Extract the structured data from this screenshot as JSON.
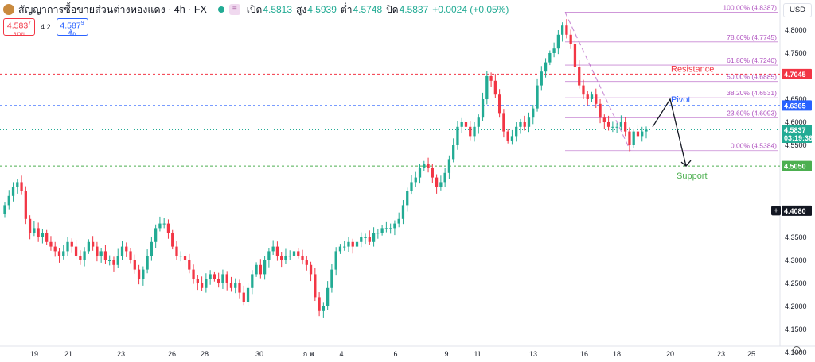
{
  "header": {
    "title": "สัญญาการซื้อขายส่วนต่างทองแดง · 4h · FX",
    "open_label": "เปิด",
    "open": "4.5813",
    "high_label": "สูง",
    "high": "4.5939",
    "low_label": "ต่ำ",
    "low": "4.5748",
    "close_label": "ปิด",
    "close": "4.5837",
    "change": "+0.0024 (+0.05%)",
    "symbol_icon": "copper-logo-icon",
    "live_icon": "live-dot-icon",
    "eye_icon": "indicator-visibility-icon",
    "eye_glyph": "≡"
  },
  "trade": {
    "sell_price": "4.583",
    "sell_sup": "7",
    "sell_label": "ขาย",
    "spread": "4.2",
    "buy_price": "4.587",
    "buy_sup": "9",
    "buy_label": "ซื้อ"
  },
  "currency": "USD",
  "colors": {
    "up": "#22ab94",
    "down": "#f23645",
    "fib": "#9c27b0",
    "pivot": "#2962ff",
    "support": "#4caf50",
    "resistance": "#f23645"
  },
  "chart_data": {
    "type": "candlestick",
    "interval": "4h",
    "x_ticks": [
      "19",
      "21",
      "23",
      "26",
      "28",
      "30",
      "ก.พ.",
      "4",
      "6",
      "9",
      "11",
      "13",
      "16",
      "18",
      "20",
      "23",
      "25"
    ],
    "y_ticks": [
      "4.8000",
      "4.7500",
      "4.6500",
      "4.6000",
      "4.5500",
      "4.3500",
      "4.3000",
      "4.2500",
      "4.2000",
      "4.1500",
      "4.1000"
    ],
    "ylim": [
      4.1,
      4.85
    ],
    "close_path": [
      4.42,
      4.44,
      4.46,
      4.47,
      4.45,
      4.39,
      4.36,
      4.37,
      4.35,
      4.36,
      4.34,
      4.33,
      4.32,
      4.31,
      4.32,
      4.34,
      4.33,
      4.31,
      4.3,
      4.32,
      4.34,
      4.33,
      4.31,
      4.32,
      4.3,
      4.3,
      4.29,
      4.31,
      4.33,
      4.32,
      4.3,
      4.28,
      4.26,
      4.28,
      4.31,
      4.34,
      4.37,
      4.38,
      4.38,
      4.36,
      4.33,
      4.31,
      4.31,
      4.3,
      4.28,
      4.26,
      4.25,
      4.24,
      4.26,
      4.27,
      4.26,
      4.25,
      4.27,
      4.25,
      4.24,
      4.25,
      4.23,
      4.21,
      4.24,
      4.27,
      4.29,
      4.27,
      4.3,
      4.32,
      4.33,
      4.31,
      4.3,
      4.31,
      4.31,
      4.32,
      4.31,
      4.3,
      4.29,
      4.27,
      4.22,
      4.19,
      4.2,
      4.24,
      4.28,
      4.32,
      4.33,
      4.33,
      4.34,
      4.33,
      4.34,
      4.35,
      4.35,
      4.34,
      4.36,
      4.36,
      4.37,
      4.37,
      4.37,
      4.38,
      4.39,
      4.42,
      4.45,
      4.47,
      4.48,
      4.5,
      4.51,
      4.5,
      4.48,
      4.46,
      4.47,
      4.49,
      4.52,
      4.55,
      4.59,
      4.6,
      4.59,
      4.57,
      4.59,
      4.61,
      4.65,
      4.7,
      4.69,
      4.66,
      4.62,
      4.58,
      4.56,
      4.57,
      4.59,
      4.6,
      4.59,
      4.61,
      4.63,
      4.68,
      4.71,
      4.73,
      4.75,
      4.76,
      4.79,
      4.81,
      4.79,
      4.77,
      4.72,
      4.68,
      4.66,
      4.65,
      4.66,
      4.64,
      4.61,
      4.6,
      4.59,
      4.59,
      4.59,
      4.6,
      4.58,
      4.55,
      4.58,
      4.57,
      4.58,
      4.5837
    ],
    "fibonacci": [
      {
        "label": "100.00% (4.8387)",
        "value": 4.8387
      },
      {
        "label": "78.60% (4.7745)",
        "value": 4.7745
      },
      {
        "label": "61.80% (4.7240)",
        "value": 4.724
      },
      {
        "label": "50.00% (4.6885)",
        "value": 4.6885
      },
      {
        "label": "38.20% (4.6531)",
        "value": 4.6531
      },
      {
        "label": "23.60% (4.6093)",
        "value": 4.6093
      },
      {
        "label": "0.00% (4.5384)",
        "value": 4.5384
      }
    ],
    "levels": {
      "resistance": {
        "label": "Resistance",
        "value": 4.7045,
        "badge": "4.7045"
      },
      "pivot": {
        "label": "Pivot",
        "value": 4.6365,
        "badge": "4.6365"
      },
      "support": {
        "label": "Support",
        "value": 4.505,
        "badge": "4.5050"
      },
      "last": {
        "value": 4.5837,
        "badge": "4.5837",
        "countdown": "03:19:36"
      },
      "crosshair": {
        "value": 4.408,
        "badge": "4.4080"
      }
    },
    "projection": [
      {
        "t": "18",
        "price": 4.59
      },
      {
        "t": "19",
        "price": 4.65
      },
      {
        "t": "20",
        "price": 4.505
      }
    ]
  }
}
